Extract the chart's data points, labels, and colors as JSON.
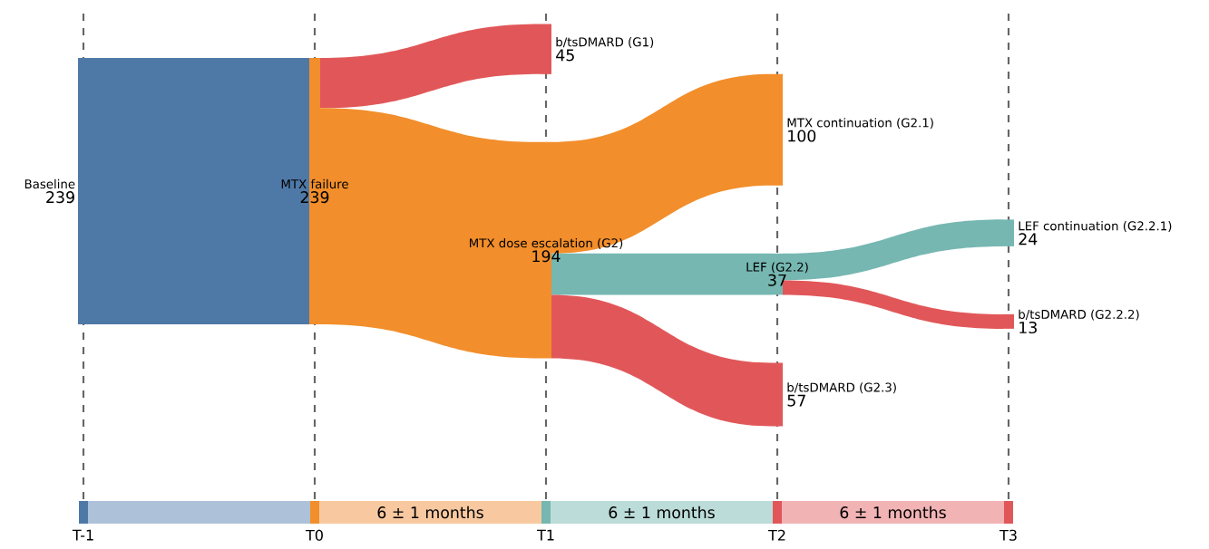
{
  "chart_data": {
    "type": "other",
    "categories": [
      "Baseline",
      "MTX failure",
      "b/tsDMARD (G1)",
      "MTX dose escalation (G2)",
      "MTX continuation (G2.1)",
      "LEF (G2.2)",
      "b/tsDMARD (G2.3)",
      "LEF continuation (G2.2.1)",
      "b/tsDMARD (G2.2.2)"
    ],
    "values": [
      239,
      239,
      45,
      194,
      100,
      37,
      57,
      24,
      13
    ],
    "colors": [
      "#4e79a7",
      "#f28e2b",
      "#e15759",
      "#f28e2b",
      "#f28e2b",
      "#76b7b2",
      "#e15759",
      "#76b7b2",
      "#e15759"
    ],
    "data_labels": true,
    "annotations": [
      "T-1",
      "T0",
      "T1",
      "T2",
      "T3",
      "6 ± 1 months",
      "6 ± 1 months",
      "6 ± 1 months"
    ]
  }
}
